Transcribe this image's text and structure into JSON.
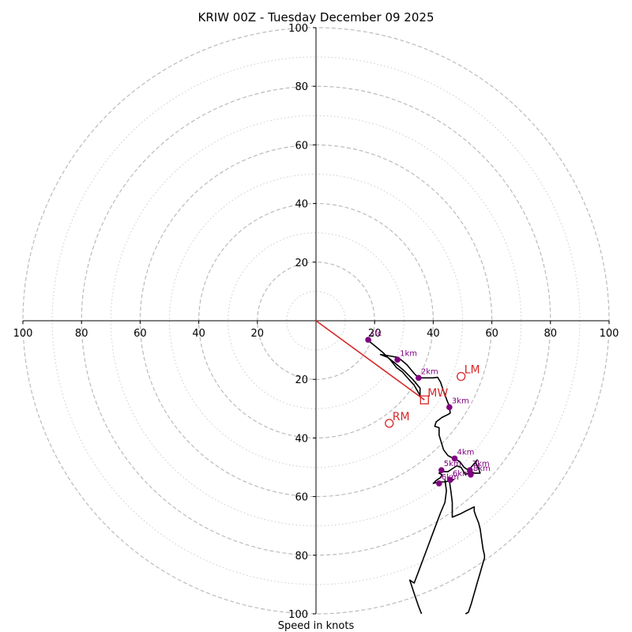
{
  "chart_data": {
    "type": "hodograph",
    "title": "KRIW 00Z - Tuesday December 09 2025",
    "xlabel": "Speed in knots",
    "axis_range": [
      -100,
      100
    ],
    "ring_major": [
      20,
      40,
      60,
      80,
      100
    ],
    "ring_minor": [
      10,
      30,
      50,
      70,
      90
    ],
    "x_ticks": [
      {
        "value": -100,
        "label": "100"
      },
      {
        "value": -80,
        "label": "80"
      },
      {
        "value": -60,
        "label": "60"
      },
      {
        "value": -40,
        "label": "40"
      },
      {
        "value": -20,
        "label": "20"
      },
      {
        "value": 20,
        "label": "20"
      },
      {
        "value": 40,
        "label": "40"
      },
      {
        "value": 60,
        "label": "60"
      },
      {
        "value": 80,
        "label": "80"
      },
      {
        "value": 100,
        "label": "100"
      }
    ],
    "y_ticks": [
      {
        "value": 100,
        "label": "100"
      },
      {
        "value": 80,
        "label": "80"
      },
      {
        "value": 60,
        "label": "60"
      },
      {
        "value": 40,
        "label": "40"
      },
      {
        "value": 20,
        "label": "20"
      },
      {
        "value": -20,
        "label": "20"
      },
      {
        "value": -40,
        "label": "40"
      },
      {
        "value": -60,
        "label": "60"
      },
      {
        "value": -80,
        "label": "80"
      },
      {
        "value": -100,
        "label": "100"
      }
    ],
    "trace": [
      [
        17.5,
        -6.5
      ],
      [
        20,
        -8.5
      ],
      [
        23,
        -11
      ],
      [
        25.5,
        -13.5
      ],
      [
        27.5,
        -16
      ],
      [
        29.5,
        -17.5
      ],
      [
        31.5,
        -19.8
      ],
      [
        33.5,
        -22
      ],
      [
        35.5,
        -25.5
      ],
      [
        35.5,
        -23
      ],
      [
        33,
        -20
      ],
      [
        30,
        -17
      ],
      [
        27,
        -14.5
      ],
      [
        24.5,
        -12.5
      ],
      [
        22,
        -11.5
      ],
      [
        25,
        -12
      ],
      [
        28,
        -12.5
      ],
      [
        31,
        -15
      ],
      [
        33.5,
        -18
      ],
      [
        35,
        -19.5
      ],
      [
        40,
        -19.5
      ],
      [
        41.5,
        -19.3
      ],
      [
        42.5,
        -21
      ],
      [
        43.5,
        -24
      ],
      [
        45,
        -28
      ],
      [
        45.5,
        -29
      ],
      [
        45.8,
        -31.5
      ],
      [
        45,
        -32
      ],
      [
        43,
        -33
      ],
      [
        41,
        -34.5
      ],
      [
        40.5,
        -36
      ],
      [
        42,
        -36.5
      ],
      [
        42,
        -39
      ],
      [
        43.5,
        -44
      ],
      [
        45,
        -46
      ],
      [
        47,
        -47
      ],
      [
        49,
        -48
      ],
      [
        50.5,
        -50
      ],
      [
        52,
        -51
      ],
      [
        54,
        -52
      ],
      [
        56,
        -52
      ],
      [
        55.5,
        -50.5
      ],
      [
        54.5,
        -48.5
      ],
      [
        55,
        -47.5
      ],
      [
        52.5,
        -50.5
      ],
      [
        52,
        -52
      ],
      [
        51,
        -52.5
      ],
      [
        49.5,
        -50
      ],
      [
        48,
        -49.5
      ],
      [
        46.5,
        -50.5
      ],
      [
        45,
        -51.5
      ],
      [
        43,
        -51.5
      ],
      [
        42,
        -52
      ],
      [
        43,
        -52.5
      ],
      [
        42.5,
        -53.5
      ],
      [
        41,
        -54.5
      ],
      [
        40,
        -55.5
      ],
      [
        42,
        -55
      ],
      [
        44,
        -55
      ],
      [
        46,
        -54.5
      ],
      [
        47,
        -54.2
      ],
      [
        45.5,
        -54.5
      ],
      [
        46,
        -58
      ],
      [
        46.5,
        -62
      ],
      [
        46.5,
        -67
      ],
      [
        49,
        -66
      ],
      [
        51,
        -65
      ],
      [
        54,
        -63.5
      ],
      [
        54,
        -65
      ],
      [
        54.5,
        -66.5
      ],
      [
        55.5,
        -69
      ],
      [
        56,
        -71
      ],
      [
        56.5,
        -74.5
      ],
      [
        57,
        -78
      ],
      [
        57.5,
        -80
      ],
      [
        57.5,
        -81
      ],
      [
        57,
        -82.5
      ],
      [
        56,
        -86
      ],
      [
        55,
        -89.5
      ],
      [
        54,
        -93
      ],
      [
        53,
        -96.5
      ],
      [
        52,
        -99.5
      ],
      [
        51,
        -100
      ]
    ],
    "branch": [
      [
        44,
        -54.2
      ],
      [
        44.5,
        -58
      ],
      [
        44,
        -62
      ],
      [
        42.5,
        -65.5
      ],
      [
        41,
        -69.5
      ],
      [
        39.5,
        -73.5
      ],
      [
        38,
        -77.5
      ],
      [
        36.5,
        -81.5
      ],
      [
        35,
        -85.5
      ],
      [
        33.5,
        -89.5
      ],
      [
        32,
        -88.5
      ],
      [
        33,
        -91.5
      ],
      [
        34,
        -94.5
      ],
      [
        35,
        -97.5
      ],
      [
        36,
        -100
      ]
    ],
    "height_points": [
      {
        "label": "sfc",
        "u": 17.8,
        "v": -6.5
      },
      {
        "label": "1km",
        "u": 27.8,
        "v": -13.3
      },
      {
        "label": "2km",
        "u": 35,
        "v": -19.5
      },
      {
        "label": "3km",
        "u": 45.5,
        "v": -29.5
      },
      {
        "label": "4km",
        "u": 47.3,
        "v": -47
      },
      {
        "label": "5km",
        "u": 42.8,
        "v": -51
      },
      {
        "label": "6km",
        "u": 45.8,
        "v": -54.3
      },
      {
        "label": "6km",
        "u": 42,
        "v": -55.5
      },
      {
        "label": "7km",
        "u": 52.5,
        "v": -51
      },
      {
        "label": "8km",
        "u": 52.8,
        "v": -52.5
      }
    ],
    "storm_motion": {
      "vector_end": [
        37,
        -27
      ],
      "markers": [
        {
          "label": "LM",
          "u": 49.5,
          "v": -19,
          "shape": "circle"
        },
        {
          "label": "MW",
          "u": 37,
          "v": -27,
          "shape": "square"
        },
        {
          "label": "RM",
          "u": 25,
          "v": -35,
          "shape": "circle"
        }
      ]
    },
    "colors": {
      "trace": "#000000",
      "height": "#800080",
      "motion": "#d62728",
      "grid": "#bbbbbb"
    }
  }
}
